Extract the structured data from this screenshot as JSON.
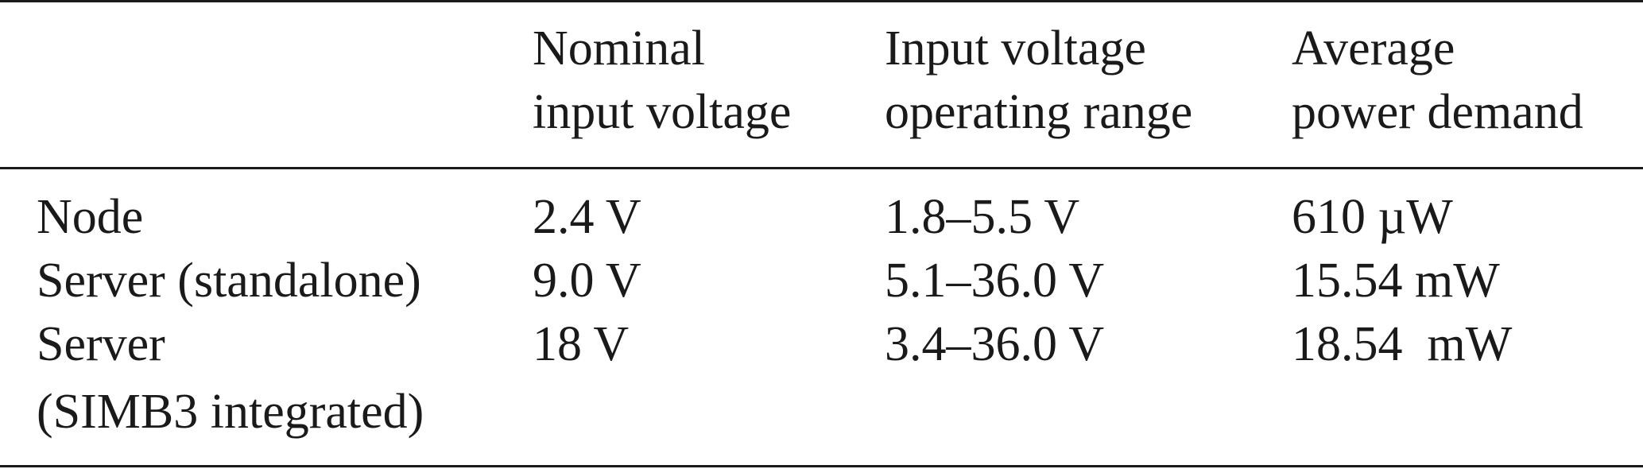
{
  "table": {
    "headers": [
      "",
      "Nominal\ninput voltage",
      "Input voltage\noperating range",
      "Average\npower demand"
    ],
    "rows": [
      {
        "label": "Node",
        "label_line2": "",
        "nominal": "2.4 V",
        "range": "1.8–5.5 V",
        "power": "610 µW"
      },
      {
        "label": "Server (standalone)",
        "label_line2": "",
        "nominal": "9.0 V",
        "range": "5.1–36.0 V",
        "power": "15.54 mW"
      },
      {
        "label": "Server",
        "label_line2": "(SIMB3 integrated)",
        "nominal": "18 V",
        "range": "3.4–36.0 V",
        "power": "18.54  mW"
      }
    ]
  }
}
